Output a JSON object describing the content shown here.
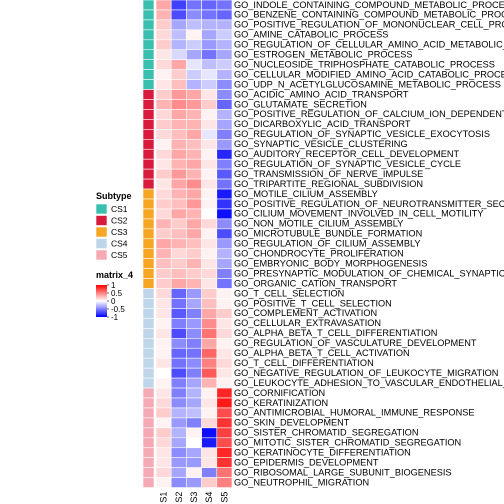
{
  "chart_data": {
    "type": "heatmap",
    "columns": [
      "S1",
      "S2",
      "S3",
      "S4",
      "S5"
    ],
    "annotation_column": "Subtype",
    "rows": [
      {
        "label": "GO_INDOLE_CONTAINING_COMPOUND_METABOLIC_PROCESS",
        "subtype": "CS1",
        "values": [
          0.35,
          -0.75,
          -0.55,
          -0.6,
          -0.55
        ]
      },
      {
        "label": "GO_BENZENE_CONTAINING_COMPOUND_METABOLIC_PROCESS",
        "subtype": "CS1",
        "values": [
          0.3,
          -0.7,
          -0.45,
          -0.55,
          -0.6
        ]
      },
      {
        "label": "GO_POSITIVE_REGULATION_OF_MONONUCLEAR_CELL_PROLIFERATION",
        "subtype": "CS1",
        "values": [
          0.2,
          -0.35,
          -0.25,
          -0.3,
          -0.3
        ]
      },
      {
        "label": "GO_AMINE_CATABOLIC_PROCESS",
        "subtype": "CS1",
        "values": [
          0.15,
          -0.25,
          0.05,
          -0.35,
          -0.2
        ]
      },
      {
        "label": "GO_REGULATION_OF_CELLULAR_AMINO_ACID_METABOLIC_PROCESS",
        "subtype": "CS1",
        "values": [
          0.2,
          -0.3,
          -0.2,
          -0.4,
          -0.3
        ]
      },
      {
        "label": "GO_ESTROGEN_METABOLIC_PROCESS",
        "subtype": "CS1",
        "values": [
          0.1,
          -0.15,
          -0.35,
          -0.55,
          -0.35
        ]
      },
      {
        "label": "GO_NUCLEOSIDE_TRIPHOSPHATE_CATABOLIC_PROCESS",
        "subtype": "CS1",
        "values": [
          0.15,
          0.35,
          -0.1,
          -0.25,
          -0.2
        ]
      },
      {
        "label": "GO_CELLULAR_MODIFIED_AMINO_ACID_CATABOLIC_PROCESS",
        "subtype": "CS1",
        "values": [
          0.05,
          0.2,
          -0.2,
          -0.1,
          -0.3
        ]
      },
      {
        "label": "GO_UDP_N_ACETYLGLUCOSAMINE_METABOLIC_PROCESS",
        "subtype": "CS1",
        "values": [
          0.1,
          0.25,
          -0.3,
          -0.2,
          -0.45
        ]
      },
      {
        "label": "GO_ACIDIC_AMINO_ACID_TRANSPORT",
        "subtype": "CS2",
        "values": [
          0.2,
          0.4,
          0.35,
          0.1,
          -0.45
        ]
      },
      {
        "label": "GO_GLUTAMATE_SECRETION",
        "subtype": "CS2",
        "values": [
          0.3,
          0.45,
          0.4,
          0.2,
          -0.6
        ]
      },
      {
        "label": "GO_POSITIVE_REGULATION_OF_CALCIUM_ION_DEPENDENT_EXOCYTOSIS",
        "subtype": "CS2",
        "values": [
          0.15,
          0.35,
          0.3,
          0.05,
          -0.3
        ]
      },
      {
        "label": "GO_DICARBOXYLIC_ACID_TRANSPORT",
        "subtype": "CS2",
        "values": [
          0.2,
          0.3,
          0.3,
          0.1,
          -0.35
        ]
      },
      {
        "label": "GO_REGULATION_OF_SYNAPTIC_VESICLE_EXOCYTOSIS",
        "subtype": "CS2",
        "values": [
          0.15,
          0.25,
          0.35,
          -0.1,
          -0.5
        ]
      },
      {
        "label": "GO_SYNAPTIC_VESICLE_CLUSTERING",
        "subtype": "CS2",
        "values": [
          0.05,
          0.3,
          0.25,
          0.1,
          -0.4
        ]
      },
      {
        "label": "GO_AUDITORY_RECEPTOR_CELL_DEVELOPMENT",
        "subtype": "CS2",
        "values": [
          0.15,
          0.35,
          0.3,
          0.05,
          -0.85
        ]
      },
      {
        "label": "GO_REGULATION_OF_SYNAPTIC_VESICLE_CYCLE",
        "subtype": "CS2",
        "values": [
          0.1,
          0.3,
          0.35,
          0.1,
          -0.5
        ]
      },
      {
        "label": "GO_TRANSMISSION_OF_NERVE_IMPULSE",
        "subtype": "CS2",
        "values": [
          0.2,
          0.4,
          0.3,
          0.05,
          -0.65
        ]
      },
      {
        "label": "GO_TRIPARTITE_REGIONAL_SUBDIVISION",
        "subtype": "CS2",
        "values": [
          0.1,
          0.35,
          0.45,
          0.1,
          -0.55
        ]
      },
      {
        "label": "GO_MOTILE_CILIUM_ASSEMBLY",
        "subtype": "CS3",
        "values": [
          0.15,
          0.3,
          0.35,
          0.05,
          -0.9
        ]
      },
      {
        "label": "GO_POSITIVE_REGULATION_OF_NEUROTRANSMITTER_SECRETION",
        "subtype": "CS3",
        "values": [
          0.2,
          0.25,
          0.4,
          0.05,
          -0.8
        ]
      },
      {
        "label": "GO_CILIUM_MOVEMENT_INVOLVED_IN_CELL_MOTILITY",
        "subtype": "CS3",
        "values": [
          0.15,
          0.35,
          0.3,
          0.0,
          -0.95
        ]
      },
      {
        "label": "GO_NON_MOTILE_CILIUM_ASSEMBLY",
        "subtype": "CS3",
        "values": [
          0.3,
          0.2,
          0.35,
          0.15,
          -0.45
        ]
      },
      {
        "label": "GO_MICROTUBULE_BUNDLE_FORMATION",
        "subtype": "CS3",
        "values": [
          0.2,
          0.25,
          0.35,
          0.05,
          -0.7
        ]
      },
      {
        "label": "GO_REGULATION_OF_CILIUM_ASSEMBLY",
        "subtype": "CS3",
        "values": [
          0.35,
          0.3,
          0.25,
          0.1,
          -0.4
        ]
      },
      {
        "label": "GO_CHONDROCYTE_PROLIFERATION",
        "subtype": "CS3",
        "values": [
          0.3,
          0.15,
          0.2,
          0.05,
          -0.3
        ]
      },
      {
        "label": "GO_EMBRYONIC_BODY_MORPHOGENESIS",
        "subtype": "CS3",
        "values": [
          0.25,
          0.2,
          0.3,
          0.1,
          -0.35
        ]
      },
      {
        "label": "GO_PRESYNAPTIC_MODULATION_OF_CHEMICAL_SYNAPTIC_TRANSMISSION",
        "subtype": "CS3",
        "values": [
          0.2,
          0.25,
          0.2,
          0.15,
          -0.5
        ]
      },
      {
        "label": "GO_ORGANIC_CATION_TRANSPORT",
        "subtype": "CS3",
        "values": [
          0.2,
          0.35,
          0.3,
          0.1,
          -0.55
        ]
      },
      {
        "label": "GO_T_CELL_SELECTION",
        "subtype": "CS4",
        "values": [
          0.15,
          -0.6,
          -0.4,
          0.2,
          0.05
        ]
      },
      {
        "label": "GO_POSITIVE_T_CELL_SELECTION",
        "subtype": "CS4",
        "values": [
          0.1,
          -0.55,
          -0.35,
          0.25,
          0.05
        ]
      },
      {
        "label": "GO_COMPLEMENT_ACTIVATION",
        "subtype": "CS4",
        "values": [
          0.1,
          -0.65,
          -0.5,
          0.35,
          0.2
        ]
      },
      {
        "label": "GO_CELLULAR_EXTRAVASATION",
        "subtype": "CS4",
        "values": [
          0.05,
          -0.5,
          -0.4,
          0.45,
          0.1
        ]
      },
      {
        "label": "GO_ALPHA_BETA_T_CELL_DIFFERENTIATION",
        "subtype": "CS4",
        "values": [
          0.1,
          -0.7,
          -0.45,
          0.55,
          0.15
        ]
      },
      {
        "label": "GO_REGULATION_OF_VASCULATURE_DEVELOPMENT",
        "subtype": "CS4",
        "values": [
          0.05,
          -0.45,
          -0.5,
          0.35,
          0.05
        ]
      },
      {
        "label": "GO_ALPHA_BETA_T_CELL_ACTIVATION",
        "subtype": "CS4",
        "values": [
          0.05,
          -0.6,
          -0.55,
          0.6,
          0.1
        ]
      },
      {
        "label": "GO_T_CELL_DIFFERENTIATION",
        "subtype": "CS4",
        "values": [
          0.1,
          -0.55,
          -0.45,
          0.5,
          0.15
        ]
      },
      {
        "label": "GO_NEGATIVE_REGULATION_OF_LEUKOCYTE_MIGRATION",
        "subtype": "CS4",
        "values": [
          0.0,
          -0.7,
          -0.5,
          0.65,
          0.1
        ]
      },
      {
        "label": "GO_LEUKOCYTE_ADHESION_TO_VASCULAR_ENDOTHELIAL_CELL",
        "subtype": "CS4",
        "values": [
          0.05,
          -0.5,
          -0.35,
          0.3,
          0.05
        ]
      },
      {
        "label": "GO_CORNIFICATION",
        "subtype": "CS5",
        "values": [
          0.1,
          -0.5,
          -0.3,
          0.05,
          0.85
        ]
      },
      {
        "label": "GO_KERATINIZATION",
        "subtype": "CS5",
        "values": [
          0.15,
          -0.45,
          -0.35,
          0.1,
          0.9
        ]
      },
      {
        "label": "GO_ANTIMICROBIAL_HUMORAL_IMMUNE_RESPONSE",
        "subtype": "CS5",
        "values": [
          0.2,
          -0.3,
          -0.25,
          0.05,
          0.7
        ]
      },
      {
        "label": "GO_SKIN_DEVELOPMENT",
        "subtype": "CS5",
        "values": [
          0.05,
          -0.4,
          -0.5,
          0.15,
          0.8
        ]
      },
      {
        "label": "GO_SISTER_CHROMATID_SEGREGATION",
        "subtype": "CS5",
        "values": [
          0.2,
          -0.3,
          0.05,
          -0.95,
          0.75
        ]
      },
      {
        "label": "GO_MITOTIC_SISTER_CHROMATID_SEGREGATION",
        "subtype": "CS5",
        "values": [
          0.15,
          -0.35,
          0.0,
          -0.9,
          0.7
        ]
      },
      {
        "label": "GO_KERATINOCYTE_DIFFERENTIATION",
        "subtype": "CS5",
        "values": [
          0.1,
          -0.45,
          -0.35,
          0.1,
          0.85
        ]
      },
      {
        "label": "GO_EPIDERMIS_DEVELOPMENT",
        "subtype": "CS5",
        "values": [
          0.1,
          -0.4,
          -0.4,
          0.1,
          0.8
        ]
      },
      {
        "label": "GO_RIBOSOMAL_LARGE_SUBUNIT_BIOGENESIS",
        "subtype": "CS5",
        "values": [
          0.15,
          -0.35,
          0.05,
          -0.5,
          0.55
        ]
      },
      {
        "label": "GO_NEUTROPHIL_MIGRATION",
        "subtype": "CS5",
        "values": [
          0.05,
          -0.45,
          -0.4,
          0.2,
          0.5
        ]
      }
    ],
    "subtype_legend": {
      "title": "Subtype",
      "entries": [
        {
          "label": "CS1",
          "color": "#3ABFAE"
        },
        {
          "label": "CS2",
          "color": "#D81B3C"
        },
        {
          "label": "CS3",
          "color": "#F6A623"
        },
        {
          "label": "CS4",
          "color": "#BFD5EA"
        },
        {
          "label": "CS5",
          "color": "#F5A9B4"
        }
      ]
    },
    "color_legend": {
      "title": "matrix_4",
      "ticks": [
        1,
        0.5,
        0,
        -0.5,
        -1
      ],
      "tick_labels": [
        "1",
        "0.5",
        "0",
        "-0.5",
        "-1"
      ],
      "range": [
        -1,
        1
      ],
      "colors": {
        "low": "#0000FF",
        "mid": "#FFFFFF",
        "high": "#FF0000"
      }
    },
    "legend_placement": "left"
  }
}
